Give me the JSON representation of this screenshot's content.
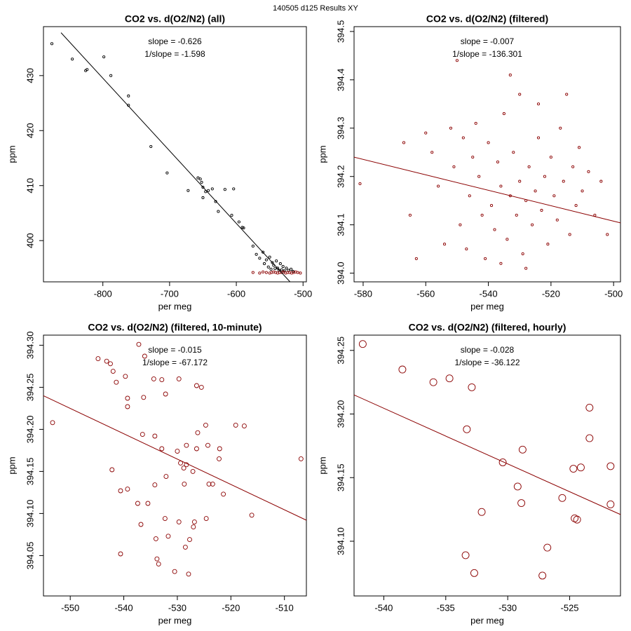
{
  "title": "140505   d125   Results XY",
  "chart_data": [
    {
      "type": "scatter",
      "title": "CO2 vs. d(O2/N2) (all)",
      "xlabel": "per meg",
      "ylabel": "ppm",
      "xlim": [
        -889,
        -495
      ],
      "ylim": [
        392.5,
        438.9
      ],
      "xticks": [
        -800,
        -700,
        -600,
        -500
      ],
      "yticks": [
        400,
        410,
        420,
        430
      ],
      "annotations": [
        "slope = -0.626",
        "1/slope = -1.598"
      ],
      "annotation_color": "#000000",
      "series": [
        {
          "color": "#000000",
          "x": [
            -876.4,
            -845.8,
            -825.8,
            -823.7,
            -798.5,
            -788,
            -761.6,
            -761.6,
            -728,
            -703.7,
            -672.2,
            -657.4,
            -654,
            -652,
            -650,
            -646,
            -642,
            -636,
            -650,
            -631,
            -627,
            -617,
            -604,
            -606.9,
            -596,
            -591,
            -589,
            -575,
            -570,
            -565,
            -560,
            -558,
            -555,
            -552,
            -550,
            -548,
            -546,
            -544,
            -542,
            -540,
            -538,
            -536,
            -534,
            -532,
            -530,
            -528,
            -525,
            -522,
            -518,
            -515
          ],
          "y": [
            435.8,
            433.0,
            430.9,
            431.1,
            433.4,
            430.0,
            426.3,
            424.6,
            417.1,
            412.3,
            409.1,
            411.4,
            411.2,
            410.6,
            409.7,
            408.9,
            409.1,
            409.4,
            407.8,
            407.1,
            405.3,
            409.3,
            409.4,
            404.6,
            403.4,
            402.4,
            402.3,
            399.0,
            397.5,
            396.8,
            397.9,
            395.8,
            396.5,
            395.2,
            397.0,
            394.8,
            396.0,
            395.5,
            394.9,
            396.3,
            395.0,
            394.6,
            395.8,
            394.7,
            395.3,
            394.5,
            395.0,
            394.6,
            394.8,
            394.4
          ]
        },
        {
          "color": "#8b0000",
          "x": [
            -575,
            -565,
            -560,
            -555,
            -550,
            -547,
            -544,
            -541,
            -538,
            -535,
            -532,
            -529,
            -526,
            -523,
            -520,
            -517,
            -514,
            -511,
            -508,
            -504
          ],
          "y": [
            394.2,
            394.1,
            394.3,
            394.2,
            394.1,
            394.2,
            394.3,
            394.2,
            394.1,
            394.2,
            394.2,
            394.3,
            394.1,
            394.2,
            394.2,
            394.1,
            394.2,
            394.3,
            394.2,
            394.1
          ]
        }
      ],
      "fit_line": {
        "color": "#000000",
        "x": [
          -862.7,
          -519.5
        ],
        "y": [
          437.8,
          392.5
        ]
      }
    },
    {
      "type": "scatter",
      "title": "CO2 vs. d(O2/N2) (filtered)",
      "xlabel": "per meg",
      "ylabel": "ppm",
      "xlim": [
        -582.9,
        -497.8
      ],
      "ylim": [
        393.982,
        394.51
      ],
      "xticks": [
        -580,
        -560,
        -540,
        -520,
        -500
      ],
      "yticks": [
        {
          "value": 394,
          "label": "394.0"
        },
        394.1,
        394.2,
        394.3,
        394.4,
        394.5
      ],
      "annotations": [
        "slope = -0.007",
        "1/slope = -136.301"
      ],
      "annotation_color": "#8b0000",
      "series": [
        {
          "color": "#8b0000",
          "x": [
            -581,
            -567,
            -565,
            -563,
            -560,
            -558,
            -556,
            -554,
            -552,
            -551,
            -550,
            -549,
            -548,
            -547,
            -546,
            -545,
            -544,
            -543,
            -542,
            -541,
            -540,
            -539,
            -538,
            -537,
            -536,
            -535,
            -534,
            -533,
            -533,
            -532,
            -531,
            -530,
            -530,
            -529,
            -528,
            -527,
            -526,
            -525,
            -524,
            -523,
            -522,
            -521,
            -520,
            -519,
            -518,
            -517,
            -516,
            -515,
            -514,
            -513,
            -512,
            -511,
            -510,
            -508,
            -506,
            -504,
            -502,
            -528,
            -536,
            -524
          ],
          "y": [
            394.185,
            394.27,
            394.12,
            394.03,
            394.29,
            394.25,
            394.18,
            394.06,
            394.3,
            394.22,
            394.44,
            394.1,
            394.28,
            394.05,
            394.16,
            394.24,
            394.31,
            394.2,
            394.12,
            394.03,
            394.27,
            394.14,
            394.09,
            394.23,
            394.18,
            394.33,
            394.07,
            394.41,
            394.16,
            394.25,
            394.12,
            394.37,
            394.19,
            394.04,
            394.15,
            394.22,
            394.1,
            394.17,
            394.28,
            394.13,
            394.2,
            394.06,
            394.24,
            394.16,
            394.11,
            394.3,
            394.19,
            394.37,
            394.08,
            394.22,
            394.14,
            394.26,
            394.17,
            394.21,
            394.12,
            394.19,
            394.08,
            394.01,
            394.02,
            394.35
          ]
        }
      ],
      "fit_line": {
        "color": "#8b0000",
        "x": [
          -582.9,
          -497.8
        ],
        "y": [
          394.24,
          394.104
        ]
      }
    },
    {
      "type": "scatter",
      "title": "CO2 vs. d(O2/N2) (filtered, 10-minute)",
      "xlabel": "per meg",
      "ylabel": "ppm",
      "xlim": [
        -555,
        -505.9
      ],
      "ylim": [
        394.002,
        394.312
      ],
      "xticks": [
        -550,
        -540,
        -530,
        -520,
        -510
      ],
      "yticks": [
        394.05,
        {
          "value": 394.1,
          "label": "394.10"
        },
        394.15,
        {
          "value": 394.2,
          "label": "394.20"
        },
        394.25,
        {
          "value": 394.3,
          "label": "394.30"
        }
      ],
      "annotations": [
        "slope = -0.015",
        "1/slope = -67.172"
      ],
      "annotation_color": "#8b0000",
      "series": [
        {
          "color": "#8b0000",
          "x": [
            -553.3,
            -544.8,
            -543.2,
            -542.5,
            -542.0,
            -541.4,
            -539.7,
            -539.3,
            -539.3,
            -537.2,
            -536.1,
            -534.4,
            -532.9,
            -536.3,
            -532.2,
            -529.7,
            -526.4,
            -525.5,
            -524.7,
            -542.2,
            -539.3,
            -536.5,
            -534.2,
            -532.9,
            -530.0,
            -528.3,
            -529.4,
            -528.3,
            -526.4,
            -524.3,
            -522.1,
            -522.2,
            -534.2,
            -532.1,
            -528.7,
            -527.1,
            -524.1,
            -523.4,
            -521.4,
            -537.4,
            -535.5,
            -532.3,
            -531.7,
            -529.7,
            -527.0,
            -526.8,
            -524.6,
            -536.8,
            -534.0,
            -528.5,
            -527.7,
            -540.6,
            -533.8,
            -533.5,
            -527.9,
            -516.1,
            -506.9,
            -517.5,
            -519.1,
            -540.6,
            -526.2,
            -528.8,
            -530.5
          ],
          "y": [
            394.208,
            394.284,
            394.281,
            394.278,
            394.269,
            394.256,
            394.263,
            394.237,
            394.227,
            394.301,
            394.287,
            394.26,
            394.259,
            394.238,
            394.242,
            394.26,
            394.252,
            394.25,
            394.205,
            394.152,
            394.129,
            394.194,
            394.192,
            394.177,
            394.174,
            394.181,
            394.16,
            394.158,
            394.177,
            394.181,
            394.177,
            394.165,
            394.134,
            394.144,
            394.135,
            394.15,
            394.135,
            394.135,
            394.123,
            394.112,
            394.112,
            394.094,
            394.073,
            394.09,
            394.084,
            394.09,
            394.094,
            394.087,
            394.07,
            394.06,
            394.069,
            394.052,
            394.046,
            394.04,
            394.028,
            394.098,
            394.165,
            394.204,
            394.205,
            394.127,
            394.196,
            394.154,
            394.031
          ]
        }
      ],
      "fit_line": {
        "color": "#8b0000",
        "x": [
          -555,
          -505.9
        ],
        "y": [
          394.24,
          394.092
        ]
      }
    },
    {
      "type": "scatter",
      "title": "CO2 vs. d(O2/N2) (filtered, hourly)",
      "xlabel": "per meg",
      "ylabel": "ppm",
      "xlim": [
        -542.4,
        -520.9
      ],
      "ylim": [
        394.057,
        394.262
      ],
      "xticks": [
        -540,
        -535,
        -530,
        -525
      ],
      "yticks": [
        {
          "value": 394.1,
          "label": "394.10"
        },
        394.15,
        {
          "value": 394.2,
          "label": "394.20"
        },
        394.25
      ],
      "annotations": [
        "slope = -0.028",
        "1/slope = -36.122"
      ],
      "annotation_color": "#8b0000",
      "series": [
        {
          "color": "#8b0000",
          "x": [
            -541.7,
            -538.5,
            -536.0,
            -534.7,
            -532.9,
            -533.3,
            -530.4,
            -528.8,
            -523.4,
            -523.4,
            -524.1,
            -524.7,
            -529.2,
            -528.9,
            -525.6,
            -521.7,
            -521.7,
            -532.1,
            -524.6,
            -524.4,
            -533.4,
            -532.7,
            -526.8,
            -527.2
          ],
          "y": [
            394.255,
            394.235,
            394.225,
            394.228,
            394.221,
            394.188,
            394.162,
            394.172,
            394.205,
            394.181,
            394.158,
            394.157,
            394.143,
            394.13,
            394.134,
            394.159,
            394.129,
            394.123,
            394.118,
            394.117,
            394.089,
            394.075,
            394.095,
            394.073
          ]
        }
      ],
      "fit_line": {
        "color": "#8b0000",
        "x": [
          -542.4,
          -520.9
        ],
        "y": [
          394.215,
          394.121
        ]
      }
    }
  ]
}
